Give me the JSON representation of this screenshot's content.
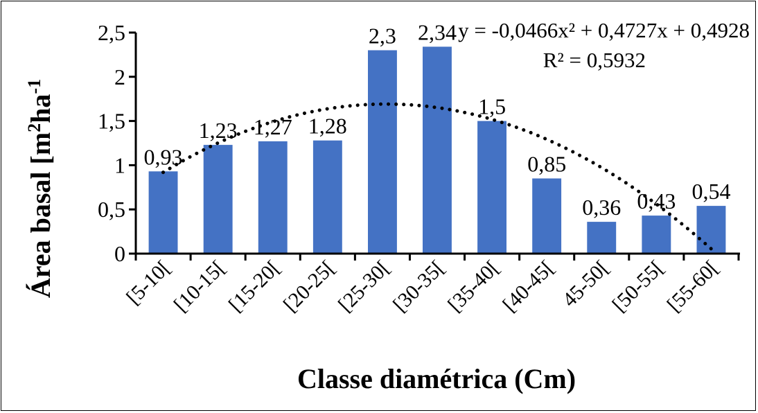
{
  "chart_data": {
    "type": "bar",
    "categories": [
      "[5-10[",
      "[10-15[",
      "[15-20[",
      "[20-25[",
      "[25-30[",
      "[30-35[",
      "[35-40[",
      "[40-45[",
      "45-50[",
      "[50-55[",
      "[55-60["
    ],
    "values": [
      0.93,
      1.23,
      1.27,
      1.28,
      2.3,
      2.34,
      1.5,
      0.85,
      0.36,
      0.43,
      0.54
    ],
    "value_labels": [
      "0,93",
      "1,23",
      "1,27",
      "1,28",
      "2,3",
      "2,34",
      "1,5",
      "0,85",
      "0,36",
      "0,43",
      "0,54"
    ],
    "xlabel": "Classe diamétrica (Cm)",
    "ylabel_main": "Área basal [m",
    "ylabel_sup1": "2",
    "ylabel_mid": "ha",
    "ylabel_sup2": "-1",
    "ylim": [
      0,
      2.5
    ],
    "y_ticks": [
      0,
      0.5,
      1,
      1.5,
      2,
      2.5
    ],
    "y_tick_labels": [
      "0",
      "0,5",
      "1",
      "1,5",
      "2",
      "2,5"
    ],
    "bar_color": "#4472c4",
    "grid": false,
    "trendline": {
      "type": "polynomial",
      "order": 2,
      "coefficients": [
        -0.0466,
        0.4727,
        0.4928
      ],
      "equation_text": "y = -0,0466x² + 0,4727x + 0,4928",
      "r2_text": "R² = 0,5932",
      "style": "dotted",
      "color": "#000000"
    }
  }
}
